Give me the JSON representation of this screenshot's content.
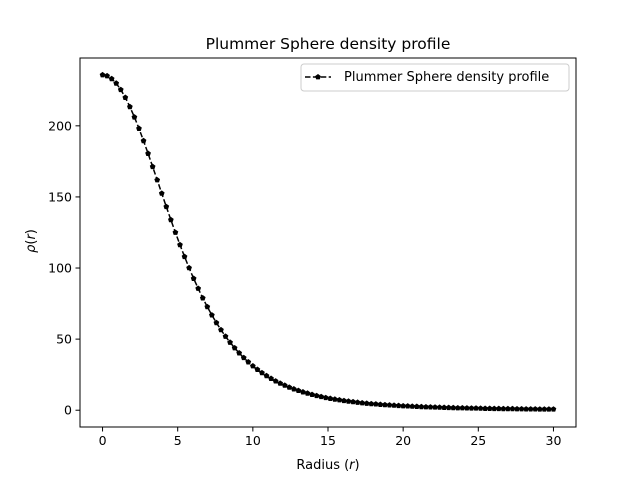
{
  "chart_data": {
    "type": "line",
    "title": "Plummer Sphere density profile",
    "xlabel_text": "Radius (",
    "xlabel_var": "r",
    "xlabel_close": ")",
    "ylabel_sym": "ρ",
    "ylabel_open": "(",
    "ylabel_var": "r",
    "ylabel_close": ")",
    "xlim": [
      -1.5,
      31.5
    ],
    "ylim": [
      -11.8,
      247.7
    ],
    "x_ticks": [
      0,
      5,
      10,
      15,
      20,
      25,
      30
    ],
    "y_ticks": [
      0,
      50,
      100,
      150,
      200
    ],
    "grid": false,
    "legend_position": "top-right",
    "series": [
      {
        "name": "Plummer Sphere density profile",
        "color": "#000000",
        "line_style": "dashed",
        "marker": "pentagon",
        "x": [
          0,
          0.303,
          0.606,
          0.909,
          1.212,
          1.515,
          1.818,
          2.121,
          2.424,
          2.727,
          3.03,
          3.333,
          3.636,
          3.939,
          4.242,
          4.545,
          4.848,
          5.152,
          5.455,
          5.758,
          6.061,
          6.364,
          6.667,
          6.97,
          7.273,
          7.576,
          7.879,
          8.182,
          8.485,
          8.788,
          9.091,
          9.394,
          9.697,
          10,
          10.303,
          10.606,
          10.909,
          11.212,
          11.515,
          11.818,
          12.121,
          12.424,
          12.727,
          13.03,
          13.333,
          13.636,
          13.939,
          14.242,
          14.545,
          14.848,
          15.152,
          15.455,
          15.758,
          16.061,
          16.364,
          16.667,
          16.97,
          17.273,
          17.576,
          17.879,
          18.182,
          18.485,
          18.788,
          19.091,
          19.394,
          19.697,
          20,
          20.303,
          20.606,
          20.909,
          21.212,
          21.515,
          21.818,
          22.121,
          22.424,
          22.727,
          23.03,
          23.333,
          23.636,
          23.939,
          24.242,
          24.545,
          24.848,
          25.152,
          25.455,
          25.758,
          26.061,
          26.364,
          26.667,
          26.97,
          27.273,
          27.576,
          27.879,
          28.182,
          28.485,
          28.788,
          29.091,
          29.394,
          29.697,
          30
        ],
        "y": [
          235.8,
          235.1,
          233.1,
          229.9,
          225.4,
          219.9,
          213.4,
          206.1,
          198.1,
          189.5,
          180.5,
          171.3,
          161.9,
          152.5,
          143.1,
          133.9,
          125,
          116.3,
          108,
          100.1,
          92.6,
          85.6,
          78.9,
          72.7,
          66.9,
          61.5,
          56.5,
          51.9,
          47.7,
          43.8,
          40.2,
          36.9,
          33.9,
          31.1,
          28.6,
          26.3,
          24.2,
          22.3,
          20.5,
          18.9,
          17.5,
          16.1,
          14.9,
          13.8,
          12.8,
          11.9,
          11,
          10.2,
          9.5,
          8.8,
          8.2,
          7.7,
          7.2,
          6.7,
          6.3,
          5.9,
          5.5,
          5.1,
          4.8,
          4.5,
          4.3,
          4,
          3.8,
          3.6,
          3.4,
          3.2,
          3,
          2.9,
          2.7,
          2.6,
          2.4,
          2.3,
          2.2,
          2.1,
          2,
          1.9,
          1.8,
          1.7,
          1.6,
          1.6,
          1.5,
          1.4,
          1.4,
          1.3,
          1.2,
          1.2,
          1.1,
          1.1,
          1,
          1,
          1,
          0.9,
          0.9,
          0.8,
          0.8,
          0.8,
          0.7,
          0.7,
          0.7,
          0.7
        ]
      }
    ]
  }
}
